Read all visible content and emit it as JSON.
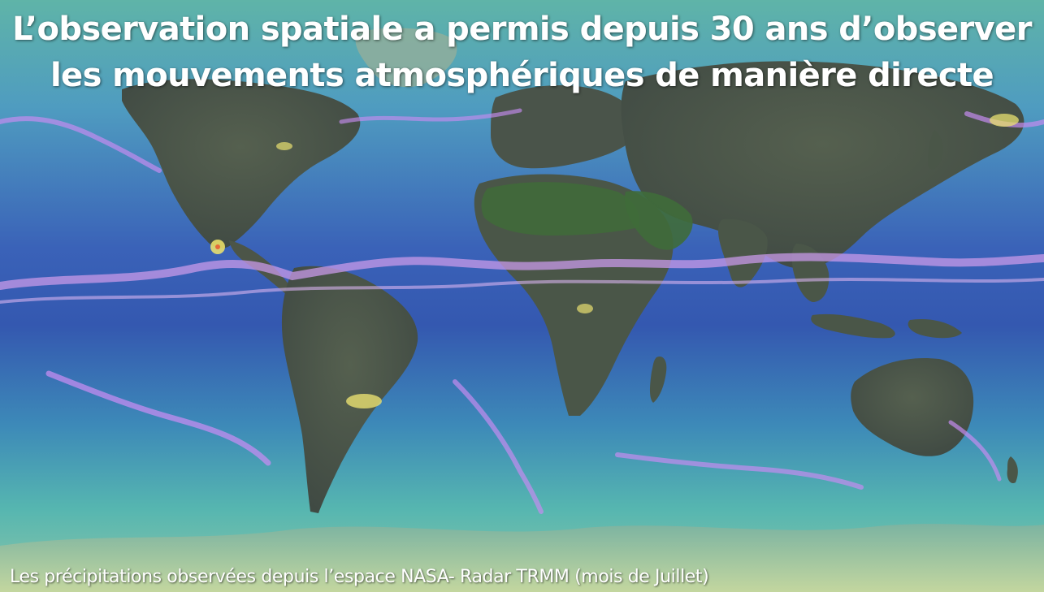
{
  "title": {
    "line1": "L’observation spatiale a permis depuis 30 ans d’observer",
    "line2": "les mouvements atmosphériques de manière directe"
  },
  "caption": "Les précipitations observées depuis l’espace NASA- Radar TRMM (mois de Juillet)",
  "colors": {
    "ocean_deep": "#2b4fa3",
    "ocean_mid": "#3f86b8",
    "ocean_light": "#58b9b0",
    "land": "#4a5a4c",
    "land_green": "#3d6a3a",
    "rain_band": "#b98be6",
    "rain_heavy": "#f0e86a",
    "polar_ice": "#b7d6a0",
    "text": "#ffffff"
  }
}
